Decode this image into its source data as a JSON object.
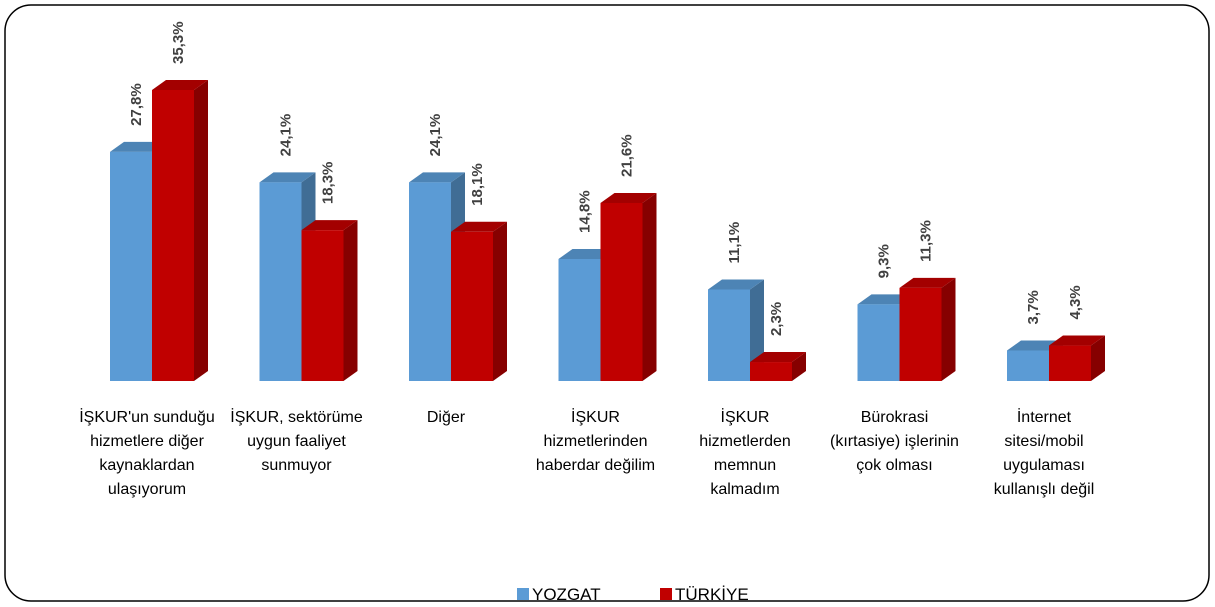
{
  "chart_data": {
    "type": "bar3d",
    "categories": [
      "İŞKUR'un sunduğu hizmetlere diğer kaynaklardan ulaşıyorum",
      "İŞKUR, sektörüme uygun faaliyet sunmuyor",
      "Diğer",
      "İŞKUR hizmetlerinden haberdar değilim",
      "İŞKUR hizmetlerden memnun kalmadım",
      "Bürokrasi (kırtasiye) işlerinin çok olması",
      "İnternet sitesi/mobil uygulaması kullanışlı değil"
    ],
    "series": [
      {
        "name": "YOZGAT",
        "color": "#5b9bd5",
        "values": [
          27.8,
          24.1,
          24.1,
          14.8,
          11.1,
          9.3,
          3.7
        ],
        "value_labels": [
          "27,8%",
          "24,1%",
          "24,1%",
          "14,8%",
          "11,1%",
          "9,3%",
          "3,7%"
        ]
      },
      {
        "name": "TÜRKİYE",
        "color": "#c00000",
        "values": [
          35.3,
          18.3,
          18.1,
          21.6,
          2.3,
          11.3,
          4.3
        ],
        "value_labels": [
          "35,3%",
          "18,3%",
          "18,1%",
          "21,6%",
          "2,3%",
          "11,3%",
          "4,3%"
        ]
      }
    ],
    "legend": "bottom"
  }
}
